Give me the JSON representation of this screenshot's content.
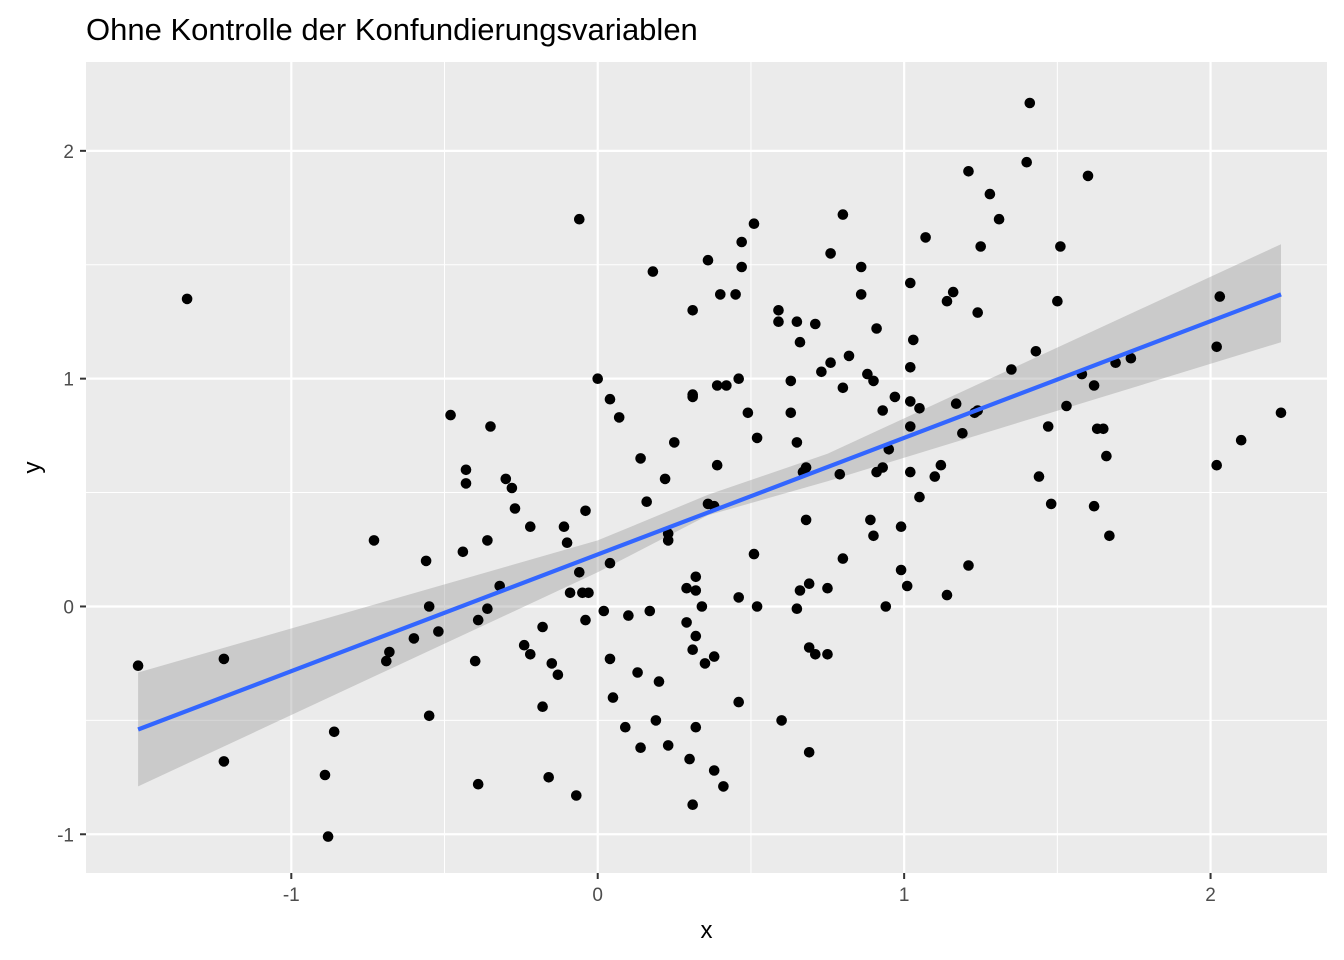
{
  "colors": {
    "panel": "#ebebeb",
    "grid": "#ffffff",
    "point": "#000000",
    "line": "#3366ff",
    "ribbon": "#999999",
    "tick": "#4d4d4d"
  },
  "chart_data": {
    "type": "scatter",
    "title": "Ohne Kontrolle der Konfundierungsvariablen",
    "xlabel": "x",
    "ylabel": "y",
    "xlim": [
      -1.67,
      2.38
    ],
    "ylim": [
      -1.17,
      2.39
    ],
    "x_ticks": [
      -1,
      0,
      1,
      2
    ],
    "x_tick_labels": [
      "-1",
      "0",
      "1",
      "2"
    ],
    "y_ticks": [
      -1,
      0,
      1,
      2
    ],
    "y_tick_labels": [
      "-1",
      "0",
      "1",
      "2"
    ],
    "grid": true,
    "legend": "none",
    "points": [
      [
        -1.5,
        -0.26
      ],
      [
        -1.34,
        1.35
      ],
      [
        -1.22,
        -0.23
      ],
      [
        -1.22,
        -0.68
      ],
      [
        -0.89,
        -0.74
      ],
      [
        -0.88,
        -1.01
      ],
      [
        -0.86,
        -0.55
      ],
      [
        -0.73,
        0.29
      ],
      [
        -0.69,
        -0.24
      ],
      [
        -0.68,
        -0.2
      ],
      [
        -0.6,
        -0.14
      ],
      [
        -0.56,
        0.2
      ],
      [
        -0.55,
        -0.48
      ],
      [
        -0.55,
        0.0
      ],
      [
        -0.52,
        -0.11
      ],
      [
        -0.48,
        0.84
      ],
      [
        -0.44,
        0.24
      ],
      [
        -0.43,
        0.6
      ],
      [
        -0.43,
        0.54
      ],
      [
        -0.4,
        -0.24
      ],
      [
        -0.39,
        -0.78
      ],
      [
        -0.39,
        -0.06
      ],
      [
        -0.36,
        0.29
      ],
      [
        -0.36,
        -0.01
      ],
      [
        -0.35,
        0.79
      ],
      [
        -0.32,
        0.09
      ],
      [
        -0.3,
        0.56
      ],
      [
        -0.28,
        0.52
      ],
      [
        -0.27,
        0.43
      ],
      [
        -0.24,
        -0.17
      ],
      [
        -0.22,
        -0.21
      ],
      [
        -0.22,
        0.35
      ],
      [
        -0.18,
        -0.09
      ],
      [
        -0.18,
        -0.44
      ],
      [
        -0.16,
        -0.75
      ],
      [
        -0.15,
        -0.25
      ],
      [
        -0.13,
        -0.3
      ],
      [
        -0.11,
        0.35
      ],
      [
        -0.1,
        0.28
      ],
      [
        -0.09,
        0.06
      ],
      [
        -0.07,
        -0.83
      ],
      [
        -0.06,
        0.15
      ],
      [
        -0.06,
        1.7
      ],
      [
        -0.05,
        0.06
      ],
      [
        -0.04,
        0.42
      ],
      [
        -0.04,
        -0.06
      ],
      [
        -0.03,
        0.06
      ],
      [
        0.0,
        1.0
      ],
      [
        0.02,
        -0.02
      ],
      [
        0.04,
        0.91
      ],
      [
        0.04,
        0.19
      ],
      [
        0.04,
        -0.23
      ],
      [
        0.05,
        -0.4
      ],
      [
        0.07,
        0.83
      ],
      [
        0.09,
        -0.53
      ],
      [
        0.1,
        -0.04
      ],
      [
        0.13,
        -0.29
      ],
      [
        0.14,
        -0.62
      ],
      [
        0.14,
        0.65
      ],
      [
        0.16,
        0.46
      ],
      [
        0.17,
        -0.02
      ],
      [
        0.18,
        1.47
      ],
      [
        0.19,
        -0.5
      ],
      [
        0.2,
        -0.33
      ],
      [
        0.22,
        0.56
      ],
      [
        0.23,
        -0.61
      ],
      [
        0.23,
        0.29
      ],
      [
        0.23,
        0.32
      ],
      [
        0.25,
        0.72
      ],
      [
        0.29,
        0.08
      ],
      [
        0.29,
        -0.07
      ],
      [
        0.3,
        -0.67
      ],
      [
        0.31,
        -0.87
      ],
      [
        0.31,
        1.3
      ],
      [
        0.31,
        0.93
      ],
      [
        0.31,
        0.92
      ],
      [
        0.31,
        -0.19
      ],
      [
        0.32,
        -0.13
      ],
      [
        0.32,
        0.13
      ],
      [
        0.32,
        0.07
      ],
      [
        0.32,
        -0.53
      ],
      [
        0.34,
        0.0
      ],
      [
        0.35,
        -0.25
      ],
      [
        0.36,
        1.52
      ],
      [
        0.36,
        0.45
      ],
      [
        0.38,
        -0.22
      ],
      [
        0.38,
        0.44
      ],
      [
        0.38,
        -0.72
      ],
      [
        0.39,
        0.62
      ],
      [
        0.39,
        0.97
      ],
      [
        0.4,
        1.37
      ],
      [
        0.41,
        -0.79
      ],
      [
        0.42,
        0.97
      ],
      [
        0.45,
        1.37
      ],
      [
        0.46,
        0.04
      ],
      [
        0.46,
        -0.42
      ],
      [
        0.46,
        1.0
      ],
      [
        0.47,
        1.49
      ],
      [
        0.47,
        1.6
      ],
      [
        0.49,
        0.85
      ],
      [
        0.51,
        1.68
      ],
      [
        0.51,
        0.23
      ],
      [
        0.52,
        0.0
      ],
      [
        0.52,
        0.74
      ],
      [
        0.59,
        1.25
      ],
      [
        0.59,
        1.3
      ],
      [
        0.6,
        -0.5
      ],
      [
        0.63,
        0.85
      ],
      [
        0.63,
        0.99
      ],
      [
        0.65,
        1.25
      ],
      [
        0.65,
        0.72
      ],
      [
        0.65,
        -0.01
      ],
      [
        0.66,
        0.07
      ],
      [
        0.66,
        1.16
      ],
      [
        0.67,
        0.59
      ],
      [
        0.68,
        0.38
      ],
      [
        0.68,
        0.61
      ],
      [
        0.69,
        -0.64
      ],
      [
        0.69,
        0.1
      ],
      [
        0.69,
        -0.18
      ],
      [
        0.71,
        1.24
      ],
      [
        0.71,
        -0.21
      ],
      [
        0.73,
        1.03
      ],
      [
        0.75,
        0.08
      ],
      [
        0.75,
        -0.21
      ],
      [
        0.76,
        1.55
      ],
      [
        0.76,
        1.07
      ],
      [
        0.79,
        0.58
      ],
      [
        0.8,
        1.72
      ],
      [
        0.8,
        0.96
      ],
      [
        0.8,
        0.21
      ],
      [
        0.82,
        1.1
      ],
      [
        0.86,
        1.49
      ],
      [
        0.86,
        1.37
      ],
      [
        0.88,
        1.02
      ],
      [
        0.89,
        0.38
      ],
      [
        0.9,
        0.31
      ],
      [
        0.9,
        0.99
      ],
      [
        0.91,
        0.59
      ],
      [
        0.91,
        1.22
      ],
      [
        0.93,
        0.61
      ],
      [
        0.93,
        0.86
      ],
      [
        0.94,
        0.0
      ],
      [
        0.95,
        0.69
      ],
      [
        0.97,
        0.92
      ],
      [
        0.99,
        0.35
      ],
      [
        0.99,
        0.16
      ],
      [
        1.01,
        0.09
      ],
      [
        1.02,
        1.42
      ],
      [
        1.02,
        0.9
      ],
      [
        1.02,
        0.79
      ],
      [
        1.02,
        1.05
      ],
      [
        1.02,
        0.59
      ],
      [
        1.03,
        1.17
      ],
      [
        1.05,
        0.87
      ],
      [
        1.05,
        0.48
      ],
      [
        1.07,
        1.62
      ],
      [
        1.1,
        0.57
      ],
      [
        1.12,
        0.62
      ],
      [
        1.14,
        1.34
      ],
      [
        1.14,
        0.05
      ],
      [
        1.16,
        1.38
      ],
      [
        1.17,
        0.89
      ],
      [
        1.19,
        0.76
      ],
      [
        1.21,
        0.18
      ],
      [
        1.21,
        1.91
      ],
      [
        1.23,
        0.85
      ],
      [
        1.24,
        0.86
      ],
      [
        1.24,
        1.29
      ],
      [
        1.25,
        1.58
      ],
      [
        1.28,
        1.81
      ],
      [
        1.31,
        1.7
      ],
      [
        1.35,
        1.04
      ],
      [
        1.4,
        1.95
      ],
      [
        1.41,
        2.21
      ],
      [
        1.43,
        1.12
      ],
      [
        1.44,
        0.57
      ],
      [
        1.47,
        0.79
      ],
      [
        1.48,
        0.45
      ],
      [
        1.5,
        1.34
      ],
      [
        1.51,
        1.58
      ],
      [
        1.53,
        0.88
      ],
      [
        1.58,
        1.02
      ],
      [
        1.6,
        1.89
      ],
      [
        1.62,
        0.97
      ],
      [
        1.62,
        0.44
      ],
      [
        1.63,
        0.78
      ],
      [
        1.65,
        0.78
      ],
      [
        1.66,
        0.66
      ],
      [
        1.67,
        0.31
      ],
      [
        1.69,
        1.07
      ],
      [
        1.74,
        1.09
      ],
      [
        2.02,
        0.62
      ],
      [
        2.02,
        1.14
      ],
      [
        2.03,
        1.36
      ],
      [
        2.1,
        0.73
      ],
      [
        2.23,
        0.85
      ]
    ],
    "fit_line": {
      "x": [
        -1.5,
        2.23
      ],
      "y": [
        -0.54,
        1.37
      ]
    },
    "confidence_band": {
      "x": [
        -1.5,
        0.0,
        0.36,
        0.75,
        2.23
      ],
      "lower": [
        -0.79,
        0.15,
        0.4,
        0.55,
        1.16
      ],
      "upper": [
        -0.29,
        0.29,
        0.49,
        0.67,
        1.59
      ]
    }
  }
}
